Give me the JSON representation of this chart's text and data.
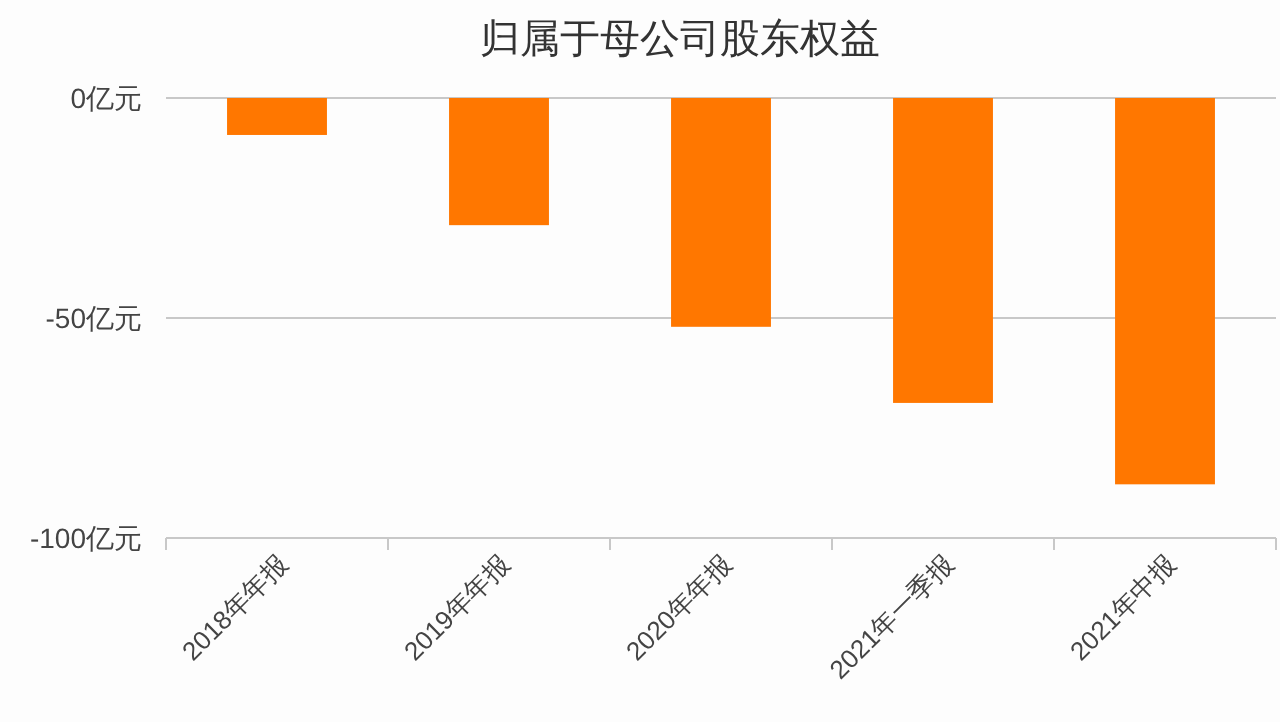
{
  "chart_data": {
    "type": "bar",
    "title": "归属于母公司股东权益",
    "categories": [
      "2018年年报",
      "2019年年报",
      "2020年年报",
      "2021年一季报",
      "2021年中报"
    ],
    "series": [
      {
        "color": "#ff7700",
        "values": [
          -8.4,
          -28.9,
          -52.0,
          -69.3,
          -87.8
        ]
      }
    ],
    "ylim": [
      -100,
      0
    ],
    "yticks": [
      {
        "value": 0,
        "label": "0亿元"
      },
      {
        "value": -50,
        "label": "-50亿元"
      },
      {
        "value": -100,
        "label": "-100亿元"
      }
    ],
    "grid": "y"
  }
}
